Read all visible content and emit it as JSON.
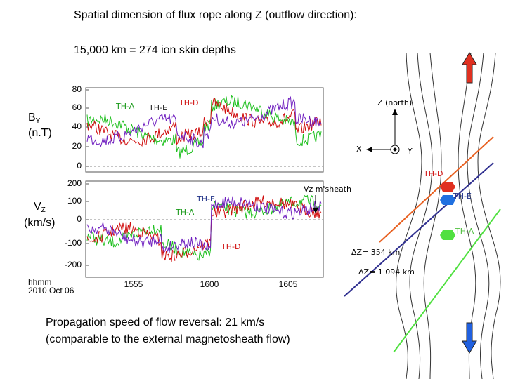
{
  "title": "Spatial dimension of flux rope along Z (outflow direction):",
  "subtitle": "15,000 km = 274 ion skin depths",
  "panels": [
    {
      "ylabel": "B",
      "ylabel_sub": "Y",
      "ylabel_unit": "(n.T)",
      "yticks": [
        "80",
        "60",
        "40",
        "20",
        "0"
      ],
      "labels": [
        "TH-A",
        "TH-E",
        "TH-D"
      ]
    },
    {
      "ylabel": "V",
      "ylabel_sub": "Z",
      "ylabel_unit": "(km/s)",
      "yticks": [
        "200",
        "100",
        "0",
        "-100",
        "-200"
      ],
      "labels": [
        "TH-E",
        "TH-A",
        "TH-D"
      ],
      "annotation": "Vz  m'sheath"
    }
  ],
  "xticks": [
    "1555",
    "1600",
    "1605"
  ],
  "time_label": "hhmm",
  "date": "2010 Oct 06",
  "diagram": {
    "z": "Z (north)",
    "x": "X",
    "y": "Y",
    "probes": [
      "TH-D",
      "TH-E",
      "TH-A"
    ],
    "dz1": "ΔZ= 354 km",
    "dz2": "ΔZ= 1 094 km"
  },
  "footer": [
    "Propagation speed of flow reversal: 21 km/s",
    "(comparable to the external magnetosheath flow)"
  ]
}
